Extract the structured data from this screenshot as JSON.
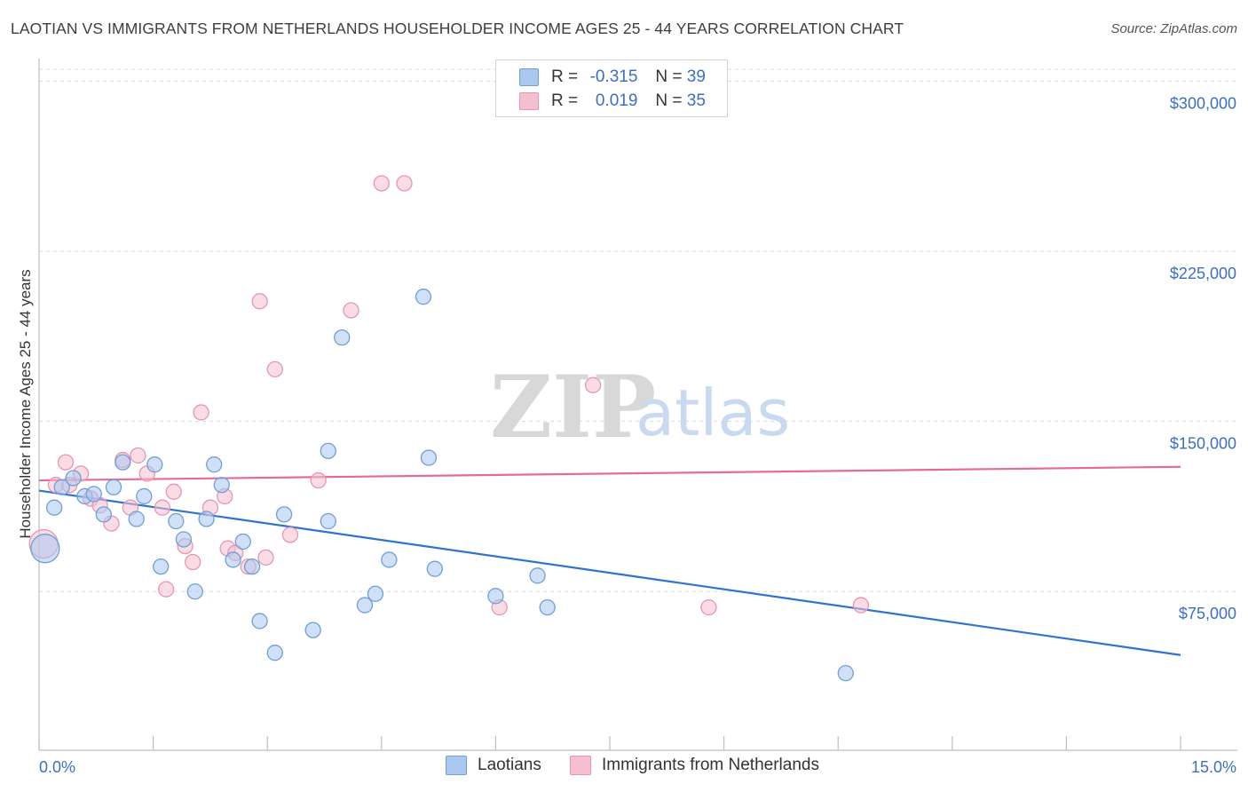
{
  "title": "LAOTIAN VS IMMIGRANTS FROM NETHERLANDS HOUSEHOLDER INCOME AGES 25 - 44 YEARS CORRELATION CHART",
  "source": "Source: ZipAtlas.com",
  "watermark": {
    "zip": "ZIP",
    "atlas": "atlas"
  },
  "legend": {
    "rows": [
      {
        "r_label": "R =",
        "r_value": "-0.315",
        "n_label": "N =",
        "n_value": "39"
      },
      {
        "r_label": "R =",
        "r_value": "0.019",
        "n_label": "N =",
        "n_value": "35"
      }
    ]
  },
  "bottom_legend": {
    "laotians": "Laotians",
    "netherlands": "Immigrants from Netherlands"
  },
  "colors": {
    "blue_fill": "#aac8f0",
    "blue_stroke": "#6f9fd9",
    "blue_line": "#2f73d0",
    "pink_fill": "#f6bfd0",
    "pink_stroke": "#e896b0",
    "pink_line": "#e56b95",
    "tick_text": "#3b6fc4",
    "grid": "#dcdcdc"
  },
  "chart_data": {
    "type": "scatter",
    "title": "LAOTIAN VS IMMIGRANTS FROM NETHERLANDS HOUSEHOLDER INCOME AGES 25 - 44 YEARS CORRELATION CHART",
    "xlabel": "",
    "ylabel": "Householder Income Ages 25 - 44 years",
    "xlim": [
      0,
      15
    ],
    "ylim": [
      5000,
      310000
    ],
    "x_tick_labels": [
      "0.0%",
      "15.0%"
    ],
    "y_ticks": [
      75000,
      150000,
      225000,
      300000
    ],
    "y_tick_labels": [
      "$75,000",
      "$150,000",
      "$225,000",
      "$300,000"
    ],
    "grid": true,
    "legend_position": "top-center",
    "series": [
      {
        "name": "Laotians",
        "r": -0.315,
        "n": 39,
        "trend": {
          "x": [
            0,
            15
          ],
          "y": [
            119500,
            47000
          ]
        },
        "points": [
          {
            "x": 0.08,
            "y": 94000,
            "big": true
          },
          {
            "x": 0.2,
            "y": 112000
          },
          {
            "x": 0.3,
            "y": 121000
          },
          {
            "x": 0.45,
            "y": 125000
          },
          {
            "x": 0.6,
            "y": 117000
          },
          {
            "x": 0.72,
            "y": 118000
          },
          {
            "x": 0.85,
            "y": 109000
          },
          {
            "x": 0.98,
            "y": 121000
          },
          {
            "x": 1.1,
            "y": 132000
          },
          {
            "x": 1.28,
            "y": 107000
          },
          {
            "x": 1.38,
            "y": 117000
          },
          {
            "x": 1.52,
            "y": 131000
          },
          {
            "x": 1.6,
            "y": 86000
          },
          {
            "x": 1.8,
            "y": 106000
          },
          {
            "x": 1.9,
            "y": 98000
          },
          {
            "x": 2.05,
            "y": 75000
          },
          {
            "x": 2.2,
            "y": 107000
          },
          {
            "x": 2.3,
            "y": 131000
          },
          {
            "x": 2.4,
            "y": 122000
          },
          {
            "x": 2.55,
            "y": 89000
          },
          {
            "x": 2.68,
            "y": 97000
          },
          {
            "x": 2.8,
            "y": 86000
          },
          {
            "x": 2.9,
            "y": 62000
          },
          {
            "x": 3.1,
            "y": 48000
          },
          {
            "x": 3.22,
            "y": 109000
          },
          {
            "x": 3.6,
            "y": 58000
          },
          {
            "x": 3.8,
            "y": 137000
          },
          {
            "x": 3.8,
            "y": 106000
          },
          {
            "x": 3.98,
            "y": 187000
          },
          {
            "x": 4.28,
            "y": 69000
          },
          {
            "x": 4.42,
            "y": 74000
          },
          {
            "x": 4.6,
            "y": 89000
          },
          {
            "x": 5.05,
            "y": 205000
          },
          {
            "x": 5.12,
            "y": 134000
          },
          {
            "x": 5.2,
            "y": 85000
          },
          {
            "x": 6.0,
            "y": 73000
          },
          {
            "x": 6.55,
            "y": 82000
          },
          {
            "x": 6.68,
            "y": 68000
          },
          {
            "x": 10.6,
            "y": 39000
          }
        ]
      },
      {
        "name": "Immigrants from Netherlands",
        "r": 0.019,
        "n": 35,
        "trend": {
          "x": [
            0,
            15
          ],
          "y": [
            124000,
            130000
          ]
        },
        "points": [
          {
            "x": 0.06,
            "y": 96000,
            "big": true
          },
          {
            "x": 0.22,
            "y": 122000
          },
          {
            "x": 0.35,
            "y": 132000
          },
          {
            "x": 0.4,
            "y": 122000
          },
          {
            "x": 0.55,
            "y": 127000
          },
          {
            "x": 0.68,
            "y": 116000
          },
          {
            "x": 0.8,
            "y": 113000
          },
          {
            "x": 0.95,
            "y": 105000
          },
          {
            "x": 1.1,
            "y": 133000
          },
          {
            "x": 1.2,
            "y": 112000
          },
          {
            "x": 1.3,
            "y": 135000
          },
          {
            "x": 1.42,
            "y": 127000
          },
          {
            "x": 1.62,
            "y": 112000
          },
          {
            "x": 1.67,
            "y": 76000
          },
          {
            "x": 1.77,
            "y": 119000
          },
          {
            "x": 1.92,
            "y": 95000
          },
          {
            "x": 2.02,
            "y": 88000
          },
          {
            "x": 2.13,
            "y": 154000
          },
          {
            "x": 2.25,
            "y": 112000
          },
          {
            "x": 2.44,
            "y": 117000
          },
          {
            "x": 2.48,
            "y": 94000
          },
          {
            "x": 2.58,
            "y": 92000
          },
          {
            "x": 2.75,
            "y": 86000
          },
          {
            "x": 2.9,
            "y": 203000
          },
          {
            "x": 2.98,
            "y": 90000
          },
          {
            "x": 3.1,
            "y": 173000
          },
          {
            "x": 3.3,
            "y": 100000
          },
          {
            "x": 3.67,
            "y": 124000
          },
          {
            "x": 4.1,
            "y": 199000
          },
          {
            "x": 4.5,
            "y": 255000
          },
          {
            "x": 4.8,
            "y": 255000
          },
          {
            "x": 6.05,
            "y": 68000
          },
          {
            "x": 7.28,
            "y": 166000
          },
          {
            "x": 8.8,
            "y": 68000
          },
          {
            "x": 10.8,
            "y": 69000
          }
        ]
      }
    ]
  }
}
